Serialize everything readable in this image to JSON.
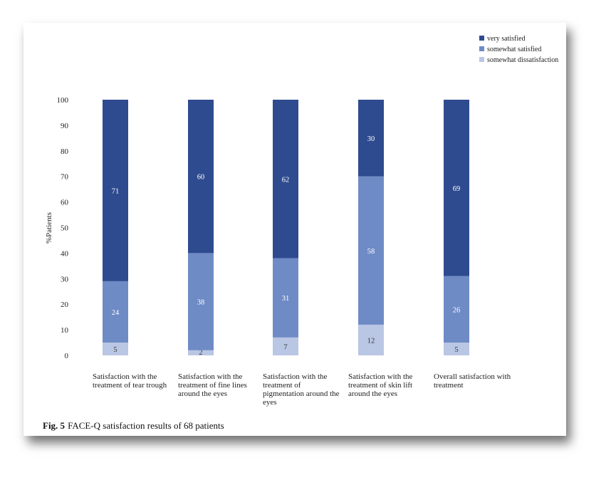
{
  "chart_data": {
    "type": "bar",
    "stacked": true,
    "title": "",
    "xlabel": "",
    "ylabel": "%Patients",
    "ylim": [
      0,
      100
    ],
    "yticks": [
      0,
      10,
      20,
      30,
      40,
      50,
      60,
      70,
      80,
      90,
      100
    ],
    "grid": false,
    "legend_position": "top-right",
    "categories": [
      "Satisfaction with the treatment of tear trough",
      "Satisfaction with the treatment of fine lines around the eyes",
      "Satisfaction with the treatment of pigmentation around the eyes",
      "Satisfaction with the treatment of skin lift around the eyes",
      "Overall satisfaction with treatment"
    ],
    "series": [
      {
        "name": "somewhat dissatisfaction",
        "color": "#b9c6e4",
        "values": [
          5,
          2,
          7,
          12,
          5
        ]
      },
      {
        "name": "somewhat satisfied",
        "color": "#6f8bc6",
        "values": [
          24,
          38,
          31,
          58,
          26
        ]
      },
      {
        "name": "very satisfied",
        "color": "#2f4b8f",
        "values": [
          71,
          60,
          62,
          30,
          69
        ]
      }
    ],
    "legend_order": [
      "very satisfied",
      "somewhat satisfied",
      "somewhat dissatisfaction"
    ]
  },
  "caption": {
    "label": "Fig. 5",
    "text": "FACE-Q satisfaction results of 68 patients"
  }
}
